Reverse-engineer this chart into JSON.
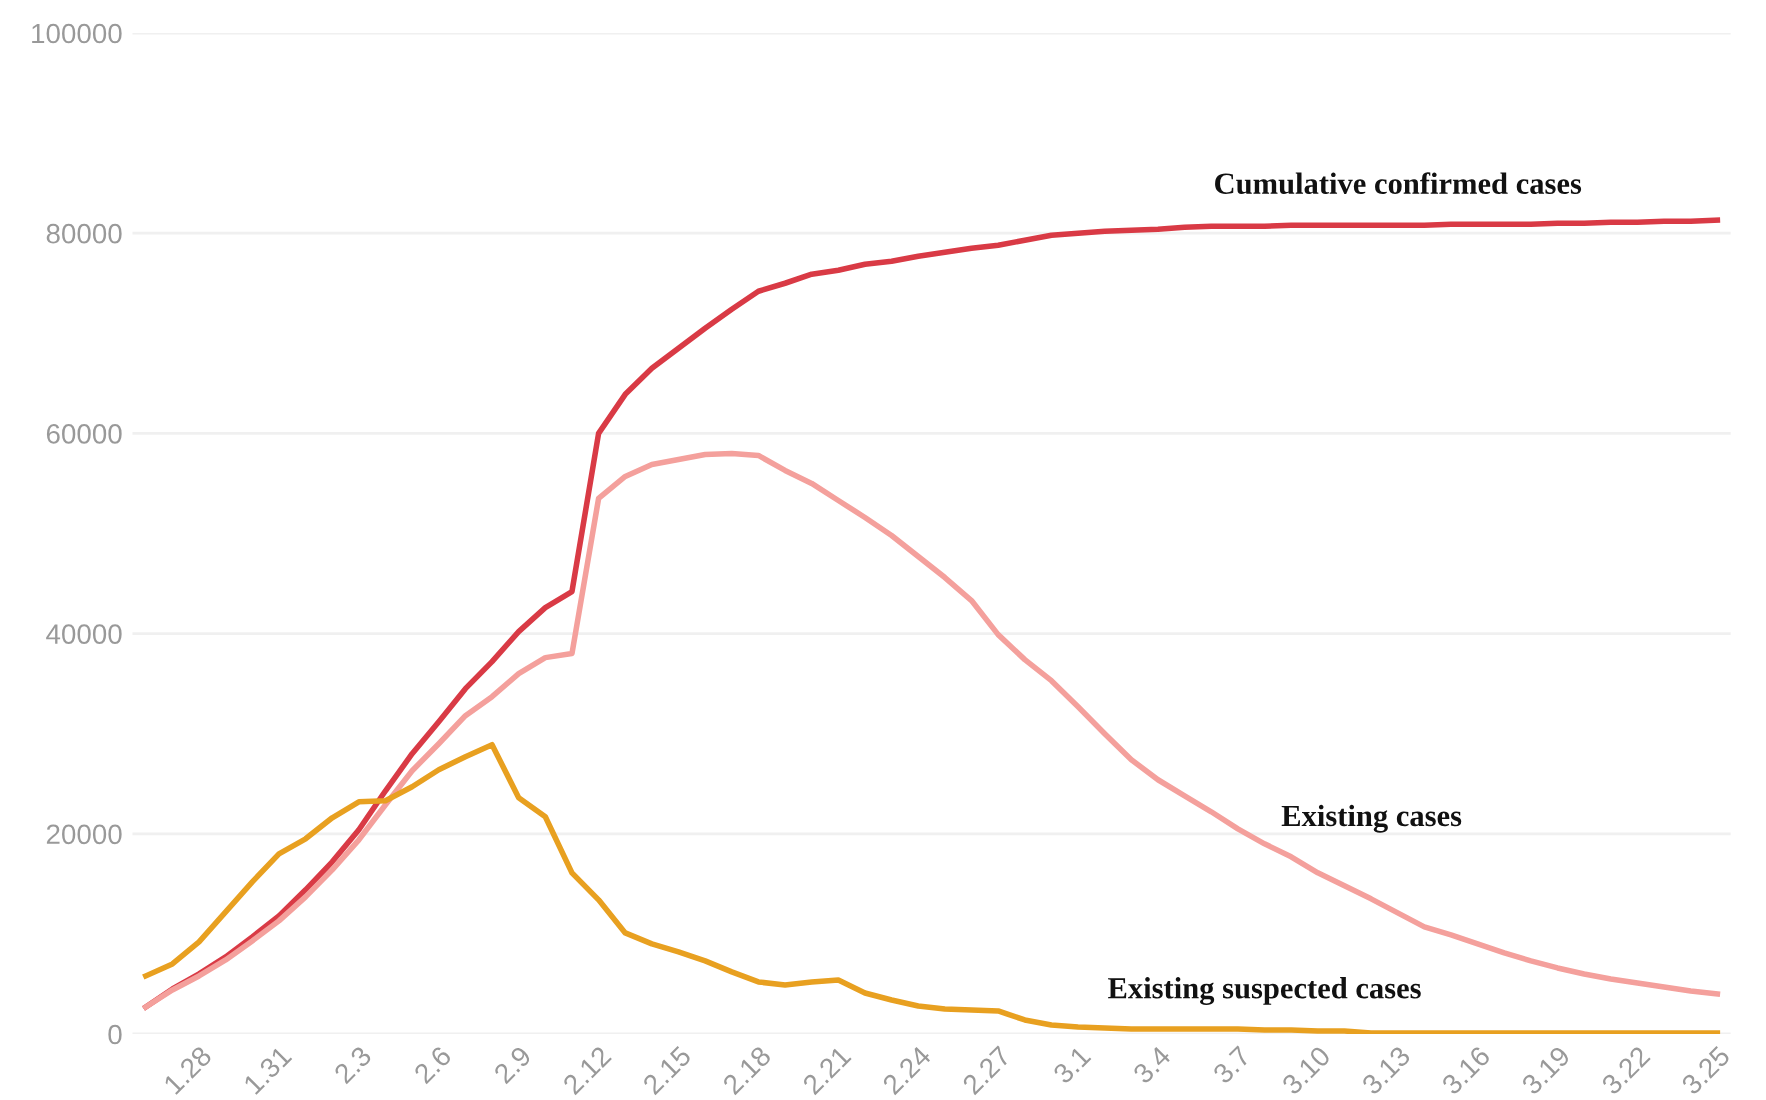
{
  "chart_data": {
    "type": "line",
    "categories": [
      null,
      null,
      "1.28",
      null,
      null,
      "1.31",
      null,
      null,
      "2.3",
      null,
      null,
      "2.6",
      null,
      null,
      "2.9",
      null,
      null,
      "2.12",
      null,
      null,
      "2.15",
      null,
      null,
      "2.18",
      null,
      null,
      "2.21",
      null,
      null,
      "2.24",
      null,
      null,
      "2.27",
      null,
      null,
      "3.1",
      null,
      null,
      "3.4",
      null,
      null,
      "3.7",
      null,
      null,
      "3.10",
      null,
      null,
      "3.13",
      null,
      null,
      "3.16",
      null,
      null,
      "3.19",
      null,
      null,
      "3.22",
      null,
      null,
      "3.25"
    ],
    "ylim": [
      0,
      100000
    ],
    "yticks": [
      0,
      20000,
      40000,
      60000,
      80000,
      100000
    ],
    "grid": "y",
    "legend": false,
    "marker": "none",
    "line_style": "solid",
    "series": [
      {
        "name": "Cumulative confirmed cases",
        "color": "#d93a45",
        "values": [
          2700,
          4500,
          6000,
          7700,
          9700,
          11800,
          14400,
          17200,
          20400,
          24300,
          28000,
          31200,
          34500,
          37200,
          40200,
          42600,
          44200,
          60000,
          63900,
          66500,
          68500,
          70500,
          72400,
          74200,
          75000,
          75900,
          76300,
          76900,
          77200,
          77700,
          78100,
          78500,
          78800,
          79300,
          79800,
          80000,
          80200,
          80300,
          80400,
          80600,
          80700,
          80700,
          80700,
          80800,
          80800,
          80800,
          80800,
          80800,
          80800,
          80900,
          80900,
          80900,
          80900,
          81000,
          81000,
          81100,
          81100,
          81200,
          81200,
          81300
        ]
      },
      {
        "name": "Existing cases",
        "color": "#f4a09c",
        "values": [
          2700,
          4400,
          5800,
          7400,
          9300,
          11300,
          13700,
          16400,
          19400,
          22900,
          26300,
          29000,
          31800,
          33700,
          36000,
          37600,
          38000,
          53500,
          55700,
          56900,
          57400,
          57900,
          58000,
          57800,
          56300,
          55000,
          53300,
          51600,
          49800,
          47700,
          45600,
          43300,
          39900,
          37400,
          35300,
          32700,
          30000,
          27400,
          25400,
          23800,
          22200,
          20500,
          19000,
          17700,
          16100,
          14800,
          13500,
          12100,
          10700,
          9900,
          9000,
          8100,
          7300,
          6600,
          6000,
          5500,
          5100,
          4700,
          4300,
          4000
        ]
      },
      {
        "name": "Existing suspected cases",
        "color": "#e8a020",
        "values": [
          5800,
          7000,
          9200,
          12200,
          15200,
          18000,
          19500,
          21600,
          23200,
          23300,
          24700,
          26400,
          27700,
          28900,
          23600,
          21700,
          16100,
          13400,
          10100,
          9000,
          8200,
          7300,
          6200,
          5200,
          4900,
          5200,
          5400,
          4100,
          3400,
          2800,
          2500,
          2400,
          2300,
          1400,
          900,
          700,
          600,
          500,
          500,
          500,
          500,
          500,
          400,
          400,
          300,
          300,
          100,
          100,
          100,
          100,
          100,
          100,
          100,
          100,
          100,
          100,
          100,
          100,
          100,
          100
        ]
      }
    ]
  }
}
